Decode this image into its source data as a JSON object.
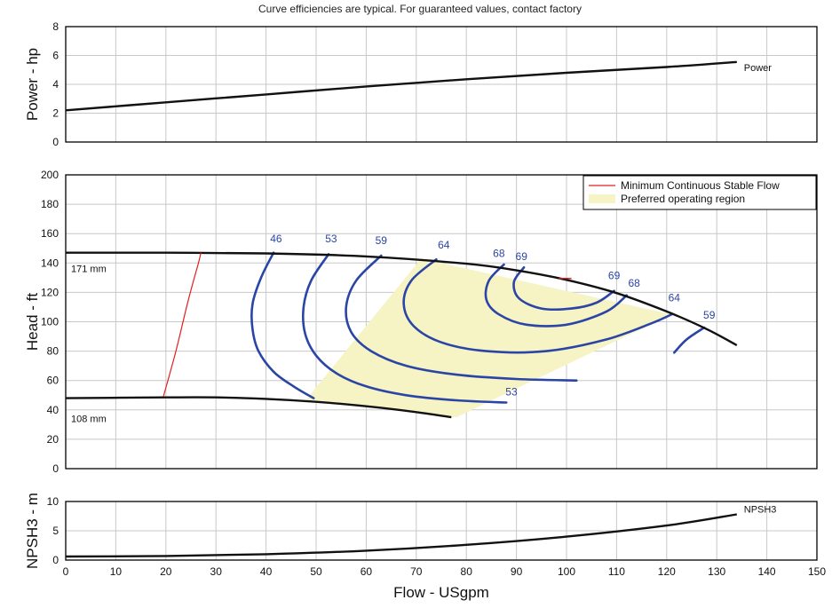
{
  "header": {
    "note": "Curve efficiencies are typical. For guaranteed values, contact factory"
  },
  "colors": {
    "curve": "#111111",
    "efficiency": "#2b45a6",
    "min_flow": "#e02020",
    "preferred_region": "#f6f3c4",
    "grid": "#c8c8c8",
    "frame": "#000000"
  },
  "chart_data": [
    {
      "id": "power",
      "type": "line",
      "ylabel": "Power - hp",
      "xlim": [
        0,
        150
      ],
      "ylim": [
        0,
        8
      ],
      "yticks": [
        0,
        2,
        4,
        6,
        8
      ],
      "grid": true,
      "series": [
        {
          "name": "Power",
          "x": [
            0,
            20,
            40,
            60,
            80,
            100,
            120,
            134
          ],
          "y": [
            2.2,
            2.75,
            3.3,
            3.85,
            4.35,
            4.8,
            5.2,
            5.55
          ]
        }
      ]
    },
    {
      "id": "head",
      "type": "line",
      "ylabel": "Head - ft",
      "xlim": [
        0,
        150
      ],
      "ylim": [
        0,
        200
      ],
      "yticks": [
        0,
        20,
        40,
        60,
        80,
        100,
        120,
        140,
        160,
        180,
        200
      ],
      "grid": true,
      "legend": {
        "position": "top-right",
        "entries": [
          {
            "label": "Minimum Continuous Stable Flow",
            "kind": "line",
            "color_key": "min_flow"
          },
          {
            "label": "Preferred operating region",
            "kind": "fill",
            "color_key": "preferred_region"
          }
        ]
      },
      "impeller_curves": [
        {
          "label": "171 mm",
          "x": [
            0,
            20,
            40,
            60,
            80,
            90,
            100,
            110,
            120,
            128,
            134
          ],
          "y": [
            147,
            147,
            146.5,
            144.5,
            139.5,
            135,
            128.5,
            119.5,
            107,
            95,
            84
          ]
        },
        {
          "label": "108 mm",
          "x": [
            0,
            20,
            30,
            40,
            50,
            60,
            70,
            77
          ],
          "y": [
            48,
            48.5,
            48.5,
            47.5,
            45.5,
            42.5,
            38.5,
            35
          ]
        }
      ],
      "min_flow": {
        "x": [
          19.5,
          22,
          24.5,
          26.5,
          27
        ],
        "y": [
          49,
          80,
          115,
          140,
          147
        ]
      },
      "preferred_region": {
        "x": [
          48,
          71,
          121,
          78
        ],
        "y": [
          47,
          143,
          105,
          35
        ]
      },
      "efficiency_contours": [
        {
          "label": "46",
          "label_pos": [
            42,
            154
          ],
          "x": [
            41.5,
            39,
            37.3,
            37.3,
            38.5,
            41.5,
            45.5,
            49.5
          ],
          "y": [
            147,
            130,
            112,
            95,
            80,
            66,
            56,
            48
          ]
        },
        {
          "label": "53",
          "label_pos": [
            53,
            154
          ],
          "x": [
            52.5,
            49,
            47.5,
            47.8,
            50,
            54,
            60,
            68,
            78,
            88
          ],
          "y": [
            146,
            128,
            110,
            92,
            77,
            65,
            56,
            50,
            46.5,
            45
          ]
        },
        {
          "label": "59",
          "label_pos": [
            63,
            153
          ],
          "x": [
            63,
            58,
            56,
            57,
            61,
            68,
            78,
            90,
            102
          ],
          "y": [
            145,
            128,
            110,
            93,
            80,
            70,
            64,
            61,
            60
          ]
        },
        {
          "label": "64",
          "label_pos": [
            75.5,
            150
          ],
          "x": [
            74,
            69,
            67.5,
            69.5,
            75,
            84,
            96,
            108,
            117,
            121
          ],
          "y": [
            142.5,
            128,
            112,
            97,
            86,
            80,
            80,
            88,
            99,
            105
          ]
        },
        {
          "label": "68",
          "label_pos": [
            86.5,
            144
          ],
          "x": [
            87.5,
            84.5,
            84,
            86.5,
            92,
            100,
            108,
            112
          ],
          "y": [
            139,
            128,
            115,
            105,
            98,
            98,
            107,
            118
          ]
        },
        {
          "label": "69",
          "label_pos": [
            91,
            142
          ],
          "x": [
            91.5,
            89.5,
            90.5,
            95,
            101,
            106,
            109.5
          ],
          "y": [
            137,
            127,
            116,
            109,
            109,
            113,
            121
          ]
        },
        {
          "label": "69",
          "label_pos": [
            109.5,
            129
          ],
          "x": [],
          "y": []
        },
        {
          "label": "68",
          "label_pos": [
            113.5,
            124
          ],
          "x": [],
          "y": []
        },
        {
          "label": "64",
          "label_pos": [
            121.5,
            114
          ],
          "x": [],
          "y": []
        },
        {
          "label": "59",
          "label_pos": [
            128.5,
            102
          ],
          "x": [
            127.5,
            124,
            121.5
          ],
          "y": [
            96,
            88,
            79
          ]
        },
        {
          "label": "53",
          "label_pos": [
            89,
            50
          ],
          "x": [],
          "y": []
        }
      ],
      "bep_marker": {
        "x": [
          98.5,
          101
        ],
        "y": [
          129.5,
          129.5
        ]
      }
    },
    {
      "id": "npsh",
      "type": "line",
      "ylabel": "NPSH3 - m",
      "xlabel": "Flow - USgpm",
      "xlim": [
        0,
        150
      ],
      "ylim": [
        0,
        10
      ],
      "yticks": [
        0,
        5,
        10
      ],
      "xticks": [
        0,
        10,
        20,
        30,
        40,
        50,
        60,
        70,
        80,
        90,
        100,
        110,
        120,
        130,
        140,
        150
      ],
      "grid": true,
      "series": [
        {
          "name": "NPSH3",
          "x": [
            0,
            20,
            40,
            60,
            80,
            100,
            120,
            134
          ],
          "y": [
            0.6,
            0.7,
            1.0,
            1.6,
            2.6,
            4.0,
            5.9,
            7.8
          ]
        }
      ]
    }
  ]
}
